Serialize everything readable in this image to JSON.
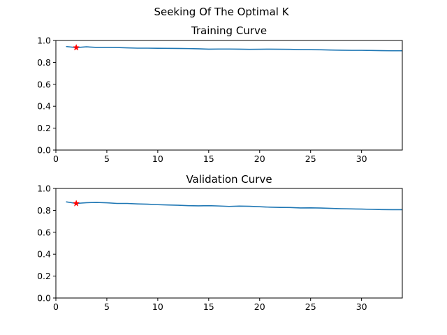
{
  "figure": {
    "suptitle": "Seeking Of The Optimal K",
    "line_color": "#1f77b4",
    "marker_color": "#ff0000",
    "marker_shape": "star"
  },
  "chart_data": [
    {
      "type": "line",
      "title": "Training Curve",
      "xlabel": "",
      "ylabel": "",
      "xlim": [
        0,
        34
      ],
      "ylim": [
        0.0,
        1.0
      ],
      "xticks": [
        "0",
        "5",
        "10",
        "15",
        "20",
        "25",
        "30"
      ],
      "yticks": [
        "0.0",
        "0.2",
        "0.4",
        "0.6",
        "0.8",
        "1.0"
      ],
      "grid": false,
      "x": [
        1,
        2,
        3,
        4,
        5,
        6,
        7,
        8,
        9,
        10,
        11,
        12,
        13,
        14,
        15,
        16,
        17,
        18,
        19,
        20,
        21,
        22,
        23,
        24,
        25,
        26,
        27,
        28,
        29,
        30,
        31,
        32,
        33,
        34
      ],
      "y": [
        0.945,
        0.935,
        0.942,
        0.937,
        0.937,
        0.936,
        0.933,
        0.93,
        0.93,
        0.929,
        0.928,
        0.927,
        0.926,
        0.924,
        0.921,
        0.922,
        0.922,
        0.921,
        0.919,
        0.92,
        0.921,
        0.92,
        0.919,
        0.917,
        0.916,
        0.915,
        0.913,
        0.911,
        0.91,
        0.91,
        0.909,
        0.907,
        0.906,
        0.906
      ],
      "optimal": {
        "x": 2,
        "y": 0.935
      }
    },
    {
      "type": "line",
      "title": "Validation Curve",
      "xlabel": "",
      "ylabel": "",
      "xlim": [
        0,
        34
      ],
      "ylim": [
        0.0,
        1.0
      ],
      "xticks": [
        "0",
        "5",
        "10",
        "15",
        "20",
        "25",
        "30"
      ],
      "yticks": [
        "0.0",
        "0.2",
        "0.4",
        "0.6",
        "0.8",
        "1.0"
      ],
      "grid": false,
      "x": [
        1,
        2,
        3,
        4,
        5,
        6,
        7,
        8,
        9,
        10,
        11,
        12,
        13,
        14,
        15,
        16,
        17,
        18,
        19,
        20,
        21,
        22,
        23,
        24,
        25,
        26,
        27,
        28,
        29,
        30,
        31,
        32,
        33,
        34
      ],
      "y": [
        0.878,
        0.863,
        0.87,
        0.872,
        0.869,
        0.863,
        0.863,
        0.859,
        0.856,
        0.852,
        0.849,
        0.847,
        0.843,
        0.841,
        0.843,
        0.84,
        0.836,
        0.839,
        0.837,
        0.833,
        0.829,
        0.827,
        0.826,
        0.822,
        0.823,
        0.821,
        0.818,
        0.815,
        0.813,
        0.812,
        0.809,
        0.807,
        0.806,
        0.806
      ],
      "optimal": {
        "x": 2,
        "y": 0.863
      }
    }
  ]
}
